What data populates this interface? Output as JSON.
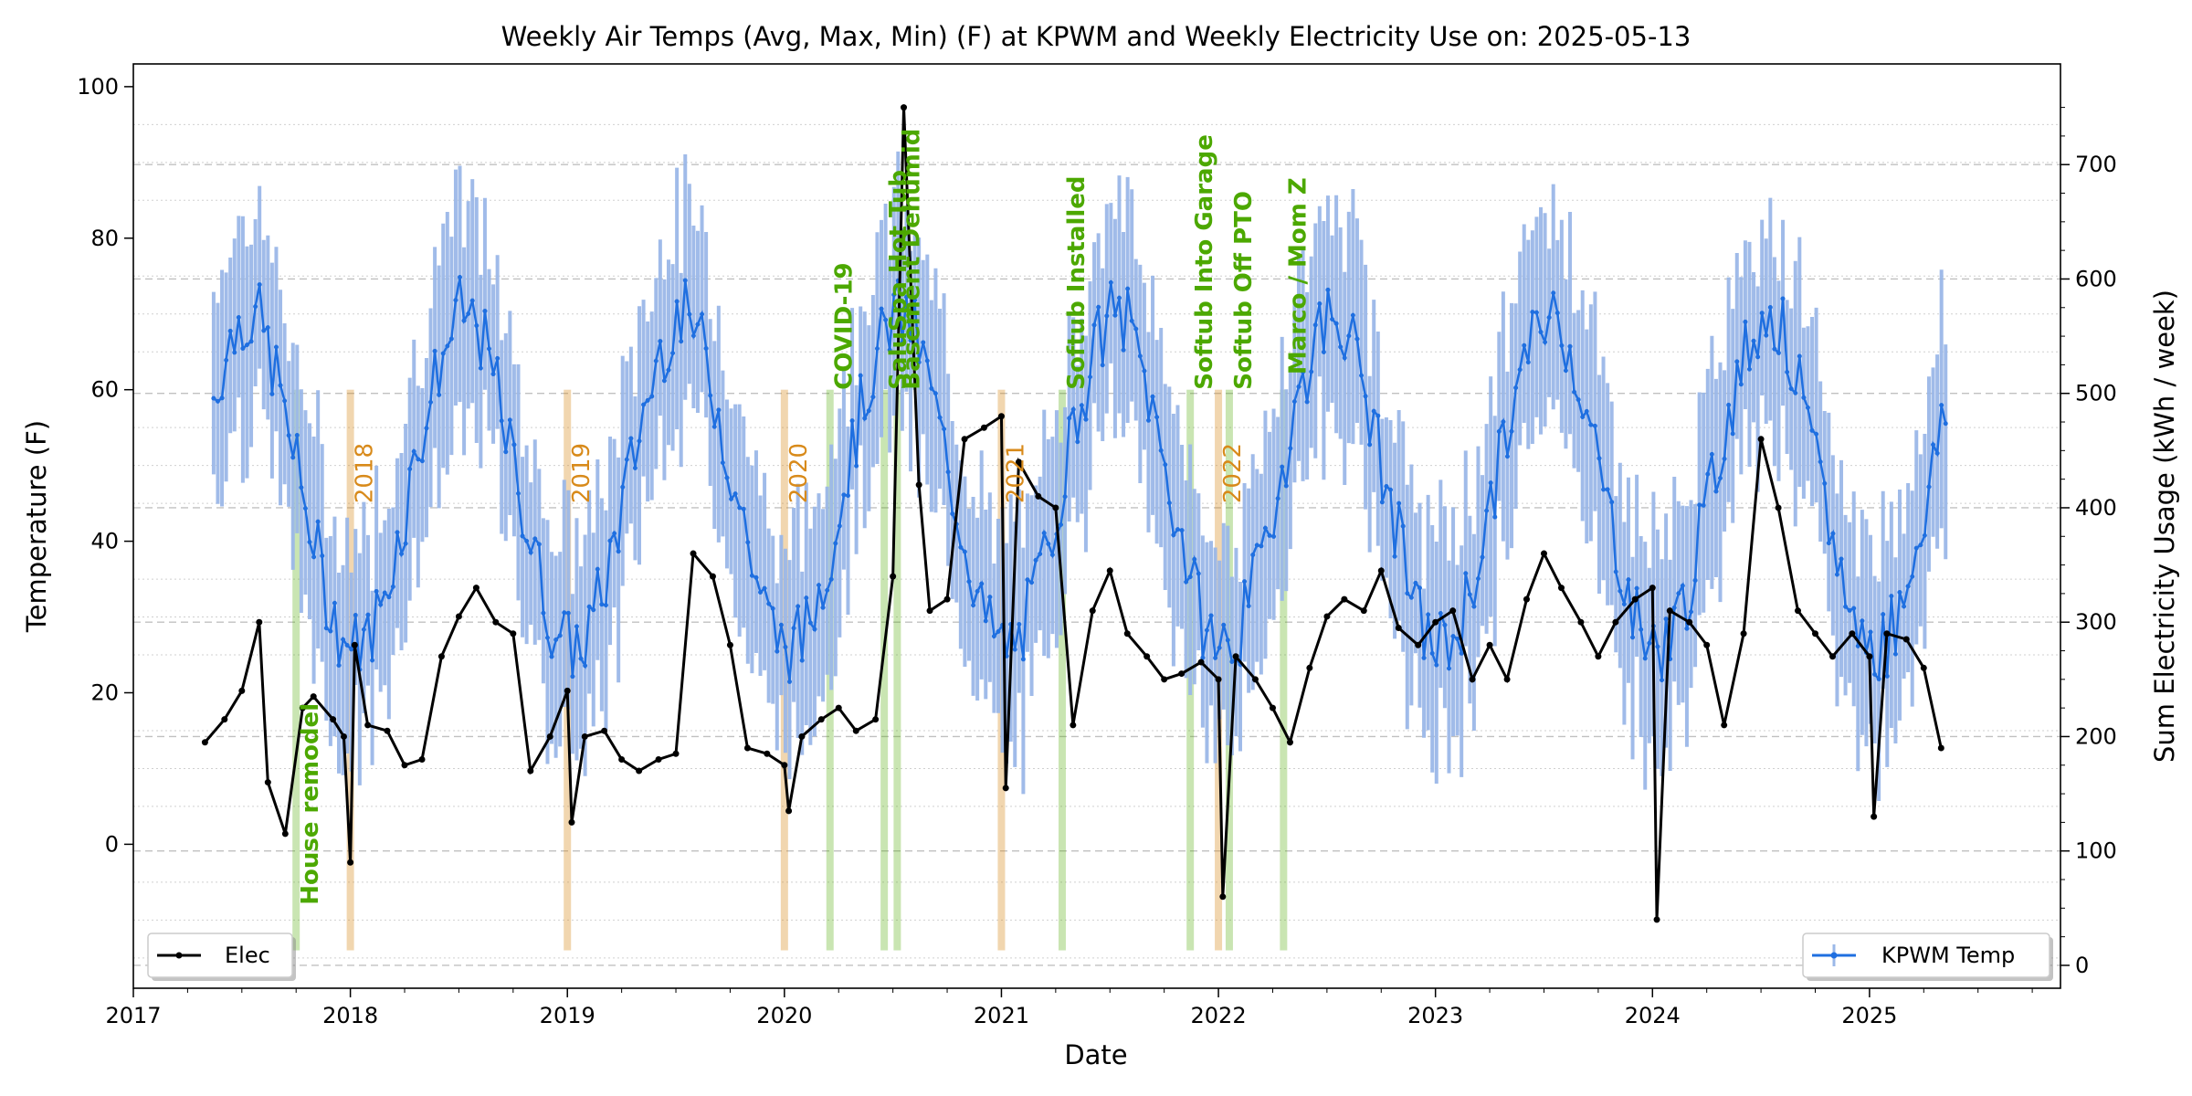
{
  "chart_data": {
    "type": "line",
    "title": "Weekly Air Temps (Avg, Max, Min) (F) at KPWM and Weekly Electricity Use on: 2025-05-13",
    "xlabel": "Date",
    "ylabel_left": "Temperature (F)",
    "ylabel_right": "Sum Electricity Usage (kWh / week)",
    "xlim": [
      2017.0,
      2025.88
    ],
    "ylim_left": [
      -19,
      103
    ],
    "ylim_right": [
      -20,
      788
    ],
    "x_ticks": [
      "2017",
      "2018",
      "2019",
      "2020",
      "2021",
      "2022",
      "2023",
      "2024",
      "2025"
    ],
    "y_ticks_left": [
      0,
      20,
      40,
      60,
      80,
      100
    ],
    "y_ticks_right": [
      0,
      100,
      200,
      300,
      400,
      500,
      600,
      700
    ],
    "grid": true,
    "legend": [
      {
        "label": "Elec",
        "placement": "bottom-left",
        "color": "#000000"
      },
      {
        "label": "KPWM Temp",
        "placement": "bottom-right",
        "color": "#1f6fe0"
      }
    ],
    "colors": {
      "temp_line": "#1f6fe0",
      "temp_range": "#9bb8e8",
      "elec_line": "#000000",
      "event_green": "#4ca800",
      "year_orange": "#d88a1a"
    },
    "temperature_series": {
      "name": "KPWM Temp",
      "start_date": "2017-05-15",
      "interval": "weekly",
      "avg_monthly_profile": [
        26,
        27,
        34,
        44,
        55,
        64,
        70,
        69,
        61,
        50,
        40,
        30
      ],
      "range_half_width": 15
    },
    "electricity_series": {
      "name": "Elec",
      "points": [
        [
          2017.33,
          195
        ],
        [
          2017.42,
          215
        ],
        [
          2017.5,
          240
        ],
        [
          2017.58,
          300
        ],
        [
          2017.62,
          160
        ],
        [
          2017.7,
          115
        ],
        [
          2017.78,
          225
        ],
        [
          2017.83,
          235
        ],
        [
          2017.92,
          215
        ],
        [
          2017.97,
          200
        ],
        [
          2018.0,
          90
        ],
        [
          2018.02,
          280
        ],
        [
          2018.08,
          210
        ],
        [
          2018.17,
          205
        ],
        [
          2018.25,
          175
        ],
        [
          2018.33,
          180
        ],
        [
          2018.42,
          270
        ],
        [
          2018.5,
          305
        ],
        [
          2018.58,
          330
        ],
        [
          2018.67,
          300
        ],
        [
          2018.75,
          290
        ],
        [
          2018.83,
          170
        ],
        [
          2018.92,
          200
        ],
        [
          2019.0,
          240
        ],
        [
          2019.02,
          125
        ],
        [
          2019.08,
          200
        ],
        [
          2019.17,
          205
        ],
        [
          2019.25,
          180
        ],
        [
          2019.33,
          170
        ],
        [
          2019.42,
          180
        ],
        [
          2019.5,
          185
        ],
        [
          2019.58,
          360
        ],
        [
          2019.67,
          340
        ],
        [
          2019.75,
          280
        ],
        [
          2019.83,
          190
        ],
        [
          2019.92,
          185
        ],
        [
          2020.0,
          175
        ],
        [
          2020.02,
          135
        ],
        [
          2020.08,
          200
        ],
        [
          2020.17,
          215
        ],
        [
          2020.25,
          225
        ],
        [
          2020.33,
          205
        ],
        [
          2020.42,
          215
        ],
        [
          2020.5,
          340
        ],
        [
          2020.55,
          750
        ],
        [
          2020.62,
          420
        ],
        [
          2020.67,
          310
        ],
        [
          2020.75,
          320
        ],
        [
          2020.83,
          460
        ],
        [
          2020.92,
          470
        ],
        [
          2021.0,
          480
        ],
        [
          2021.02,
          155
        ],
        [
          2021.08,
          440
        ],
        [
          2021.17,
          410
        ],
        [
          2021.25,
          400
        ],
        [
          2021.33,
          210
        ],
        [
          2021.42,
          310
        ],
        [
          2021.5,
          345
        ],
        [
          2021.58,
          290
        ],
        [
          2021.67,
          270
        ],
        [
          2021.75,
          250
        ],
        [
          2021.83,
          255
        ],
        [
          2021.92,
          265
        ],
        [
          2022.0,
          250
        ],
        [
          2022.02,
          60
        ],
        [
          2022.08,
          270
        ],
        [
          2022.17,
          250
        ],
        [
          2022.25,
          225
        ],
        [
          2022.33,
          195
        ],
        [
          2022.42,
          260
        ],
        [
          2022.5,
          305
        ],
        [
          2022.58,
          320
        ],
        [
          2022.67,
          310
        ],
        [
          2022.75,
          345
        ],
        [
          2022.83,
          295
        ],
        [
          2022.92,
          280
        ],
        [
          2023.0,
          300
        ],
        [
          2023.08,
          310
        ],
        [
          2023.17,
          250
        ],
        [
          2023.25,
          280
        ],
        [
          2023.33,
          250
        ],
        [
          2023.42,
          320
        ],
        [
          2023.5,
          360
        ],
        [
          2023.58,
          330
        ],
        [
          2023.67,
          300
        ],
        [
          2023.75,
          270
        ],
        [
          2023.83,
          300
        ],
        [
          2023.92,
          320
        ],
        [
          2024.0,
          330
        ],
        [
          2024.02,
          40
        ],
        [
          2024.08,
          310
        ],
        [
          2024.17,
          300
        ],
        [
          2024.25,
          280
        ],
        [
          2024.33,
          210
        ],
        [
          2024.42,
          290
        ],
        [
          2024.5,
          460
        ],
        [
          2024.58,
          400
        ],
        [
          2024.67,
          310
        ],
        [
          2024.75,
          290
        ],
        [
          2024.83,
          270
        ],
        [
          2024.92,
          290
        ],
        [
          2025.0,
          270
        ],
        [
          2025.02,
          130
        ],
        [
          2025.08,
          290
        ],
        [
          2025.17,
          285
        ],
        [
          2025.25,
          260
        ],
        [
          2025.33,
          190
        ]
      ]
    },
    "year_markers": [
      {
        "x": 2018.0,
        "label": "2018"
      },
      {
        "x": 2019.0,
        "label": "2019"
      },
      {
        "x": 2020.0,
        "label": "2020"
      },
      {
        "x": 2021.0,
        "label": "2021"
      },
      {
        "x": 2022.0,
        "label": "2022"
      }
    ],
    "event_markers": [
      {
        "x": 2017.75,
        "label": "House remodel"
      },
      {
        "x": 2020.21,
        "label": "COVID-19"
      },
      {
        "x": 2020.46,
        "label": "SaluSpa Hot Tub"
      },
      {
        "x": 2020.52,
        "label": "Basement Dehumid"
      },
      {
        "x": 2021.28,
        "label": "Softub Installed"
      },
      {
        "x": 2021.87,
        "label": "Softub Into Garage"
      },
      {
        "x": 2022.05,
        "label": "Softub Off PTO"
      },
      {
        "x": 2022.3,
        "label": "Marco / Mom Z"
      }
    ]
  }
}
